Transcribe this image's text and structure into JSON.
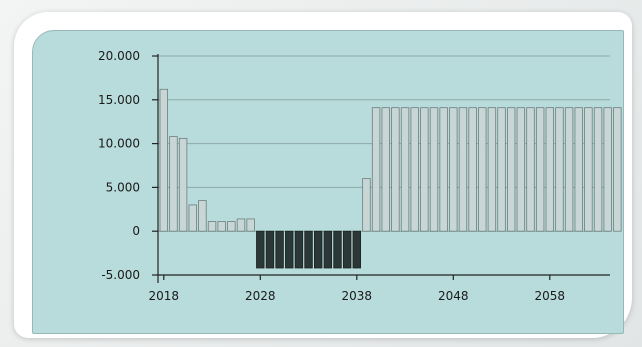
{
  "chart_data": {
    "type": "bar",
    "title": "",
    "xlabel": "",
    "ylabel": "",
    "x_start": 2018,
    "x_ticks": [
      "2018",
      "2028",
      "2038",
      "2048",
      "2058"
    ],
    "y_ticks": [
      "20.000",
      "15.000",
      "10.000",
      "5.000",
      "0",
      "-5.000"
    ],
    "ylim": [
      -5000,
      20000
    ],
    "grid": true,
    "values": [
      16200,
      10800,
      10600,
      3000,
      3500,
      1100,
      1100,
      1100,
      1400,
      1400,
      -4200,
      -4200,
      -4200,
      -4200,
      -4200,
      -4200,
      -4200,
      -4200,
      -4200,
      -4200,
      -4200,
      6000,
      14100,
      14100,
      14100,
      14100,
      14100,
      14100,
      14100,
      14100,
      14100,
      14100,
      14100,
      14100,
      14100,
      14100,
      14100,
      14100,
      14100,
      14100,
      14100,
      14100,
      14100,
      14100,
      14100,
      14100,
      14100,
      14100
    ],
    "colors": {
      "positive": "#c8d7d6",
      "negative": "#2b3837",
      "bar_edge": "#6d7e7d",
      "grid": "#8aa9a8",
      "axis": "#222222"
    }
  }
}
